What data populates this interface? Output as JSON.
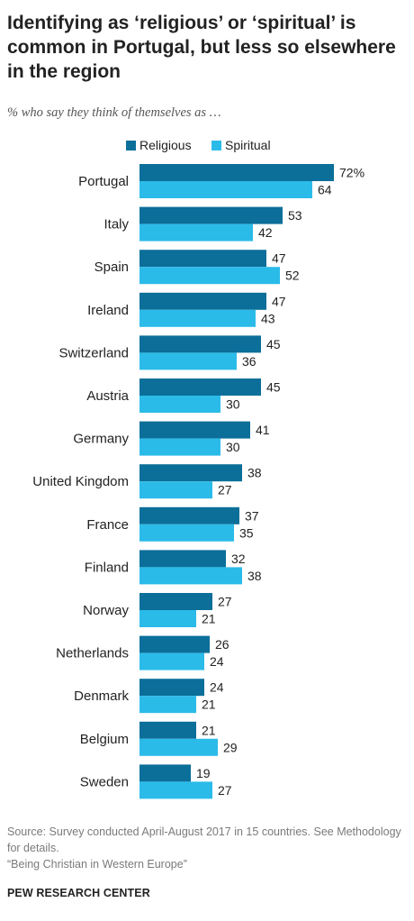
{
  "title": "Identifying as ‘religious’ or ‘spiritual’ is common in Portugal, but less so elsewhere in the region",
  "subtitle": "% who say they think of themselves as …",
  "legend": [
    {
      "name": "Religious",
      "color": "#0b6f99"
    },
    {
      "name": "Spiritual",
      "color": "#2bbbe9"
    }
  ],
  "chart_data": {
    "type": "bar",
    "orientation": "horizontal",
    "categories": [
      "Portugal",
      "Italy",
      "Spain",
      "Ireland",
      "Switzerland",
      "Austria",
      "Germany",
      "United Kingdom",
      "France",
      "Finland",
      "Norway",
      "Netherlands",
      "Denmark",
      "Belgium",
      "Sweden"
    ],
    "series": [
      {
        "name": "Religious",
        "color": "#0b6f99",
        "values": [
          72,
          53,
          47,
          47,
          45,
          45,
          41,
          38,
          37,
          32,
          27,
          26,
          24,
          21,
          19
        ]
      },
      {
        "name": "Spiritual",
        "color": "#2bbbe9",
        "values": [
          64,
          42,
          52,
          43,
          36,
          30,
          30,
          27,
          35,
          38,
          21,
          24,
          21,
          29,
          27
        ]
      }
    ],
    "first_value_suffix": "%",
    "xlim": [
      0,
      72
    ],
    "grid": false,
    "legend_position": "top"
  },
  "footer": {
    "source": "Source: Survey conducted April-August 2017 in 15 countries. See Methodology for details.",
    "report": "“Being Christian in Western Europe”"
  },
  "brand": "PEW RESEARCH CENTER"
}
